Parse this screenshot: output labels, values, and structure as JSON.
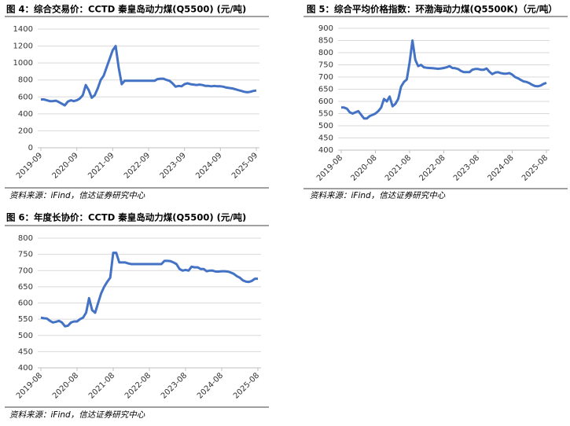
{
  "chart_data": [
    {
      "type": "line",
      "title": "图 4：综合交易价：CCTD 秦皇岛动力煤(Q5500)  (元/吨)",
      "source": "资料来源：iFind，信达证券研究中心",
      "x": [
        "2019-09",
        "2019-10",
        "2019-11",
        "2019-12",
        "2020-01",
        "2020-02",
        "2020-03",
        "2020-04",
        "2020-05",
        "2020-06",
        "2020-07",
        "2020-08",
        "2020-09",
        "2020-10",
        "2020-11",
        "2020-12",
        "2021-01",
        "2021-02",
        "2021-03",
        "2021-04",
        "2021-05",
        "2021-06",
        "2021-07",
        "2021-08",
        "2021-09",
        "2021-10",
        "2021-11",
        "2021-12",
        "2022-01",
        "2022-02",
        "2022-03",
        "2022-04",
        "2022-05",
        "2022-06",
        "2022-07",
        "2022-08",
        "2022-09",
        "2022-10",
        "2022-11",
        "2022-12",
        "2023-01",
        "2023-02",
        "2023-03",
        "2023-04",
        "2023-05",
        "2023-06",
        "2023-07",
        "2023-08",
        "2023-09",
        "2023-10",
        "2023-11",
        "2023-12",
        "2024-01",
        "2024-02",
        "2024-03",
        "2024-04",
        "2024-05",
        "2024-06",
        "2024-07",
        "2024-08",
        "2024-09",
        "2024-10",
        "2024-11",
        "2024-12",
        "2025-01",
        "2025-02",
        "2025-03",
        "2025-04",
        "2025-05",
        "2025-06",
        "2025-07",
        "2025-08",
        "2025-09"
      ],
      "series": [
        {
          "color": "#4472c4",
          "values": [
            570,
            570,
            560,
            550,
            550,
            555,
            540,
            520,
            500,
            545,
            560,
            550,
            560,
            580,
            620,
            740,
            680,
            590,
            620,
            700,
            800,
            850,
            950,
            1050,
            1150,
            1200,
            950,
            750,
            790,
            790,
            790,
            790,
            790,
            790,
            790,
            790,
            790,
            790,
            790,
            810,
            815,
            815,
            800,
            790,
            760,
            720,
            730,
            725,
            750,
            760,
            750,
            745,
            740,
            745,
            740,
            730,
            730,
            725,
            730,
            725,
            725,
            720,
            710,
            705,
            700,
            690,
            680,
            670,
            660,
            655,
            660,
            670,
            675
          ]
        }
      ],
      "ylim": [
        0,
        1400
      ],
      "yticks": [
        0,
        200,
        400,
        600,
        800,
        1000,
        1200,
        1400
      ],
      "xticks": [
        "2019-09",
        "2020-09",
        "2021-09",
        "2022-09",
        "2023-09",
        "2024-09",
        "2025-09"
      ],
      "grid": true
    },
    {
      "type": "line",
      "title": "图 5：综合平均价格指数：环渤海动力煤(Q5500K)（元/吨）",
      "source": "资料来源：iFind，信达证券研究中心",
      "x": [
        "2019-08",
        "2019-09",
        "2019-10",
        "2019-11",
        "2019-12",
        "2020-01",
        "2020-02",
        "2020-03",
        "2020-04",
        "2020-05",
        "2020-06",
        "2020-07",
        "2020-08",
        "2020-09",
        "2020-10",
        "2020-11",
        "2020-12",
        "2021-01",
        "2021-02",
        "2021-03",
        "2021-04",
        "2021-05",
        "2021-06",
        "2021-07",
        "2021-08",
        "2021-09",
        "2021-10",
        "2021-11",
        "2021-12",
        "2022-01",
        "2022-02",
        "2022-03",
        "2022-04",
        "2022-05",
        "2022-06",
        "2022-07",
        "2022-08",
        "2022-09",
        "2022-10",
        "2022-11",
        "2022-12",
        "2023-01",
        "2023-02",
        "2023-03",
        "2023-04",
        "2023-05",
        "2023-06",
        "2023-07",
        "2023-08",
        "2023-09",
        "2023-10",
        "2023-11",
        "2023-12",
        "2024-01",
        "2024-02",
        "2024-03",
        "2024-04",
        "2024-05",
        "2024-06",
        "2024-07",
        "2024-08",
        "2024-09",
        "2024-10",
        "2024-11",
        "2024-12",
        "2025-01",
        "2025-02",
        "2025-03",
        "2025-04",
        "2025-05",
        "2025-06",
        "2025-07",
        "2025-08"
      ],
      "series": [
        {
          "color": "#4472c4",
          "values": [
            575,
            575,
            570,
            555,
            550,
            555,
            560,
            545,
            530,
            530,
            540,
            545,
            550,
            560,
            575,
            610,
            600,
            620,
            580,
            590,
            610,
            660,
            680,
            690,
            760,
            850,
            770,
            745,
            750,
            740,
            738,
            737,
            736,
            735,
            734,
            735,
            737,
            740,
            745,
            737,
            736,
            733,
            725,
            720,
            720,
            720,
            730,
            733,
            733,
            730,
            730,
            735,
            722,
            712,
            718,
            720,
            716,
            714,
            714,
            716,
            710,
            700,
            695,
            688,
            682,
            680,
            675,
            668,
            663,
            662,
            665,
            672,
            676
          ]
        }
      ],
      "ylim": [
        400,
        900
      ],
      "yticks": [
        400,
        450,
        500,
        550,
        600,
        650,
        700,
        750,
        800,
        850,
        900
      ],
      "xticks": [
        "2019-08",
        "2020-08",
        "2021-08",
        "2022-08",
        "2023-08",
        "2024-08",
        "2025-08"
      ],
      "grid": true
    },
    {
      "type": "line",
      "title": "图 6：年度长协价：CCTD 秦皇岛动力煤(Q5500)  (元/吨)",
      "source": "资料来源：iFind，信达证券研究中心",
      "x": [
        "2019-08",
        "2019-09",
        "2019-10",
        "2019-11",
        "2019-12",
        "2020-01",
        "2020-02",
        "2020-03",
        "2020-04",
        "2020-05",
        "2020-06",
        "2020-07",
        "2020-08",
        "2020-09",
        "2020-10",
        "2020-11",
        "2020-12",
        "2021-01",
        "2021-02",
        "2021-03",
        "2021-04",
        "2021-05",
        "2021-06",
        "2021-07",
        "2021-08",
        "2021-09",
        "2021-10",
        "2021-11",
        "2021-12",
        "2022-01",
        "2022-02",
        "2022-03",
        "2022-04",
        "2022-05",
        "2022-06",
        "2022-07",
        "2022-08",
        "2022-09",
        "2022-10",
        "2022-11",
        "2022-12",
        "2023-01",
        "2023-02",
        "2023-03",
        "2023-04",
        "2023-05",
        "2023-06",
        "2023-07",
        "2023-08",
        "2023-09",
        "2023-10",
        "2023-11",
        "2023-12",
        "2024-01",
        "2024-02",
        "2024-03",
        "2024-04",
        "2024-05",
        "2024-06",
        "2024-07",
        "2024-08",
        "2024-09",
        "2024-10",
        "2024-11",
        "2024-12",
        "2025-01",
        "2025-02",
        "2025-03",
        "2025-04",
        "2025-05",
        "2025-06",
        "2025-07",
        "2025-08"
      ],
      "series": [
        {
          "color": "#4472c4",
          "values": [
            555,
            553,
            552,
            545,
            540,
            542,
            545,
            540,
            528,
            530,
            540,
            543,
            543,
            550,
            555,
            570,
            615,
            578,
            570,
            600,
            630,
            650,
            665,
            678,
            755,
            755,
            725,
            725,
            725,
            722,
            720,
            720,
            720,
            720,
            720,
            720,
            720,
            720,
            720,
            720,
            720,
            730,
            730,
            729,
            725,
            720,
            705,
            700,
            702,
            700,
            712,
            710,
            710,
            705,
            705,
            698,
            700,
            700,
            697,
            697,
            698,
            698,
            697,
            694,
            690,
            683,
            678,
            670,
            666,
            665,
            668,
            675,
            675
          ]
        }
      ],
      "ylim": [
        400,
        800
      ],
      "yticks": [
        400,
        450,
        500,
        550,
        600,
        650,
        700,
        750,
        800
      ],
      "xticks": [
        "2019-08",
        "2020-08",
        "2021-08",
        "2022-08",
        "2023-08",
        "2024-08",
        "2025-08"
      ],
      "grid": true
    }
  ]
}
